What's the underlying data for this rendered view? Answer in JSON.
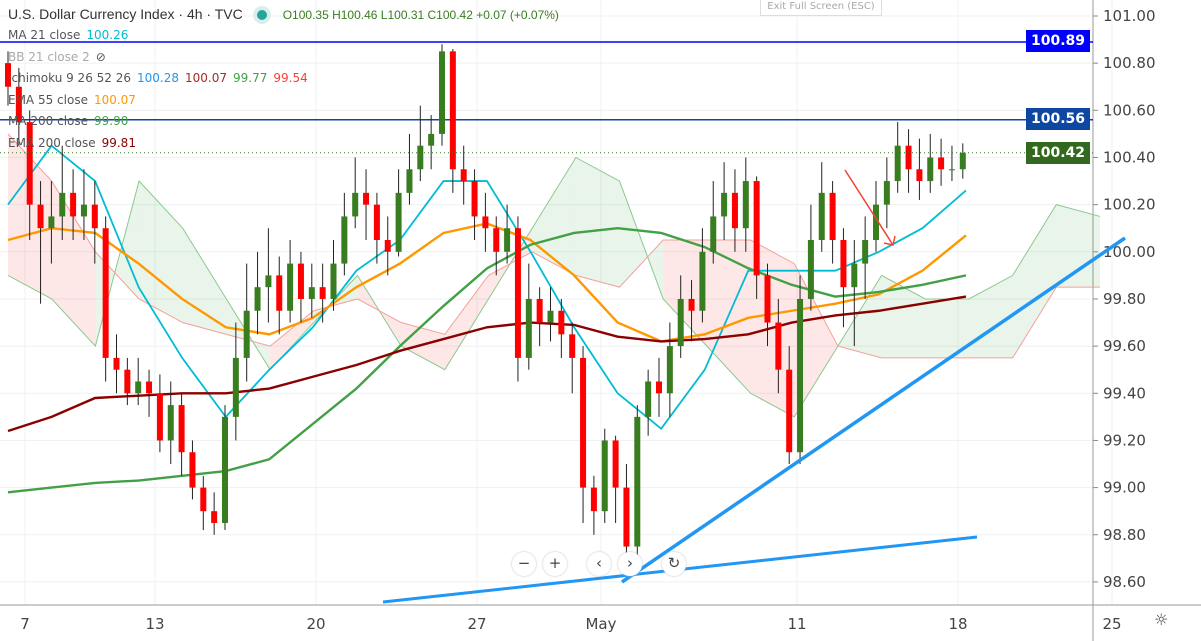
{
  "header": {
    "title": "U.S. Dollar Currency Index · 4h · TVC",
    "ohlc": "O100.35  H100.46  L100.31  C100.42  +0.07 (+0.07%)",
    "exit_fullscreen": "Exit Full Screen (ESC)"
  },
  "legend": [
    {
      "label": "MA 21 close",
      "values": [
        "100.26"
      ],
      "colors": [
        "#00bcd4"
      ]
    },
    {
      "label": "BB 21 close 2",
      "values": [],
      "colors": [],
      "hidden": true
    },
    {
      "label": "Ichimoku 9 26 52 26",
      "values": [
        "100.28",
        "100.07",
        "99.77",
        "99.54"
      ],
      "colors": [
        "#2196f3",
        "#a52a2a",
        "#43a047",
        "#f44336"
      ]
    },
    {
      "label": "EMA 55 close",
      "values": [
        "100.07"
      ],
      "colors": [
        "#ff9800"
      ]
    },
    {
      "label": "MA 200 close",
      "values": [
        "99.90"
      ],
      "colors": [
        "#43a047"
      ]
    },
    {
      "label": "EMA 200 close",
      "values": [
        "99.81"
      ],
      "colors": [
        "#8b0000"
      ]
    }
  ],
  "price_tags": [
    {
      "value": "100.89",
      "color": "#0000ff"
    },
    {
      "value": "100.56",
      "color": "#0d47a1"
    },
    {
      "value": "100.42",
      "color": "#33691e"
    }
  ],
  "controls": {
    "zoom_out": "−",
    "zoom_in": "+",
    "back": "‹",
    "forward": "›",
    "reset": "↻",
    "settings": "☼"
  },
  "chart_data": {
    "type": "candlestick",
    "symbol": "U.S. Dollar Currency Index",
    "interval": "4h",
    "ylim": [
      98.5,
      101.05
    ],
    "yticks": [
      "101.00",
      "100.80",
      "100.60",
      "100.40",
      "100.20",
      "100.00",
      "99.80",
      "99.60",
      "99.40",
      "99.20",
      "99.00",
      "98.80",
      "98.60"
    ],
    "xticks": [
      "7",
      "13",
      "20",
      "27",
      "May",
      "11",
      "18",
      "25"
    ],
    "grid": true,
    "first_open": 100.8,
    "close": [
      100.7,
      100.55,
      100.2,
      100.1,
      100.15,
      100.25,
      100.15,
      100.2,
      100.1,
      99.55,
      99.5,
      99.4,
      99.45,
      99.4,
      99.2,
      99.35,
      99.15,
      99.0,
      98.9,
      98.85,
      99.3,
      99.55,
      99.75,
      99.85,
      99.9,
      99.75,
      99.95,
      99.8,
      99.85,
      99.8,
      99.95,
      100.15,
      100.25,
      100.2,
      100.05,
      100.0,
      100.25,
      100.35,
      100.45,
      100.5,
      100.85,
      100.35,
      100.3,
      100.15,
      100.1,
      100.0,
      100.1,
      99.55,
      99.8,
      99.7,
      99.75,
      99.65,
      99.55,
      99.0,
      98.9,
      99.2,
      99.0,
      98.75,
      99.3,
      99.45,
      99.4,
      99.6,
      99.8,
      99.75,
      100.0,
      100.15,
      100.25,
      100.1,
      100.3,
      99.9,
      99.7,
      99.5,
      99.15,
      99.8,
      100.05,
      100.25,
      100.05,
      99.85,
      99.95,
      100.05,
      100.2,
      100.3,
      100.45,
      100.35,
      100.3,
      100.4,
      100.35,
      100.35,
      100.42
    ],
    "high": [
      100.85,
      100.78,
      100.6,
      100.3,
      100.3,
      100.45,
      100.35,
      100.35,
      100.3,
      100.15,
      99.65,
      99.55,
      99.55,
      99.5,
      99.48,
      99.45,
      99.4,
      99.2,
      99.05,
      98.98,
      99.35,
      99.7,
      99.95,
      100.0,
      100.1,
      99.98,
      100.05,
      100.0,
      99.95,
      99.95,
      100.05,
      100.25,
      100.4,
      100.35,
      100.25,
      100.15,
      100.35,
      100.5,
      100.62,
      100.58,
      100.88,
      100.86,
      100.45,
      100.35,
      100.25,
      100.15,
      100.2,
      100.15,
      99.95,
      99.85,
      99.85,
      99.8,
      99.7,
      99.6,
      99.05,
      99.25,
      99.22,
      99.1,
      99.35,
      99.5,
      99.55,
      99.7,
      99.9,
      99.88,
      100.1,
      100.3,
      100.38,
      100.35,
      100.4,
      100.32,
      99.95,
      99.8,
      99.6,
      99.9,
      100.2,
      100.38,
      100.3,
      100.1,
      100.05,
      100.15,
      100.3,
      100.4,
      100.55,
      100.52,
      100.48,
      100.5,
      100.48,
      100.45,
      100.46
    ],
    "low": [
      100.62,
      100.45,
      100.05,
      99.78,
      99.95,
      100.05,
      100.05,
      100.05,
      99.95,
      99.45,
      99.4,
      99.35,
      99.35,
      99.3,
      99.15,
      99.1,
      99.05,
      98.95,
      98.82,
      98.8,
      98.82,
      99.2,
      99.45,
      99.65,
      99.7,
      99.65,
      99.7,
      99.7,
      99.72,
      99.7,
      99.75,
      99.9,
      100.1,
      100.05,
      99.95,
      99.9,
      99.98,
      100.2,
      100.3,
      100.35,
      100.45,
      100.25,
      100.2,
      100.05,
      100.0,
      99.9,
      99.95,
      99.45,
      99.5,
      99.6,
      99.62,
      99.55,
      99.4,
      98.85,
      98.8,
      98.85,
      98.85,
      98.7,
      98.7,
      99.22,
      99.3,
      99.3,
      99.55,
      99.62,
      99.7,
      99.95,
      100.05,
      100.0,
      100.0,
      99.8,
      99.6,
      99.4,
      99.1,
      99.1,
      99.75,
      100.0,
      99.95,
      99.68,
      99.6,
      99.8,
      100.0,
      100.1,
      100.25,
      100.25,
      100.22,
      100.25,
      100.28,
      100.3,
      100.31
    ],
    "series": [
      {
        "name": "MA 21 close",
        "color": "#00bcd4",
        "values": [
          100.2,
          100.45,
          100.3,
          99.85,
          99.55,
          99.3,
          99.5,
          99.68,
          99.92,
          100.05,
          100.3,
          100.3,
          100.0,
          99.68,
          99.4,
          99.25,
          99.5,
          99.92,
          99.92,
          99.92,
          100.0,
          100.1,
          100.26
        ]
      },
      {
        "name": "EMA 55 close",
        "color": "#ff9800",
        "values": [
          100.05,
          100.1,
          100.08,
          99.95,
          99.8,
          99.68,
          99.65,
          99.72,
          99.85,
          99.95,
          100.08,
          100.12,
          100.05,
          99.9,
          99.7,
          99.62,
          99.65,
          99.72,
          99.75,
          99.78,
          99.82,
          99.92,
          100.07
        ]
      },
      {
        "name": "MA 200 close",
        "color": "#43a047",
        "values": [
          98.98,
          99.0,
          99.02,
          99.03,
          99.05,
          99.07,
          99.12,
          99.27,
          99.42,
          99.6,
          99.77,
          99.93,
          100.03,
          100.08,
          100.1,
          100.08,
          100.02,
          99.93,
          99.86,
          99.81,
          99.83,
          99.86,
          99.9
        ]
      },
      {
        "name": "EMA 200 close",
        "color": "#8b0000",
        "values": [
          99.24,
          99.3,
          99.38,
          99.39,
          99.4,
          99.4,
          99.42,
          99.47,
          99.52,
          99.58,
          99.63,
          99.68,
          99.7,
          99.69,
          99.64,
          99.62,
          99.63,
          99.65,
          99.7,
          99.73,
          99.75,
          99.78,
          99.81
        ]
      }
    ],
    "ichimoku_cloud": {
      "span_a": [
        99.9,
        99.8,
        99.6,
        100.3,
        100.1,
        99.8,
        99.5,
        99.7,
        99.9,
        99.6,
        99.5,
        99.8,
        100.1,
        100.4,
        100.3,
        99.8,
        99.6,
        99.4,
        99.3,
        99.6,
        99.9,
        99.8,
        99.8,
        99.9,
        100.2,
        100.15
      ],
      "span_b": [
        100.5,
        100.3,
        100.0,
        99.8,
        99.7,
        99.65,
        99.6,
        99.75,
        99.8,
        99.7,
        99.65,
        99.9,
        100.0,
        99.9,
        99.85,
        100.05,
        100.05,
        100.05,
        99.95,
        99.6,
        99.55,
        99.55,
        99.55,
        99.55,
        99.85,
        99.85
      ]
    },
    "horizontal_lines": [
      100.89,
      100.56
    ],
    "last_price": 100.42
  }
}
